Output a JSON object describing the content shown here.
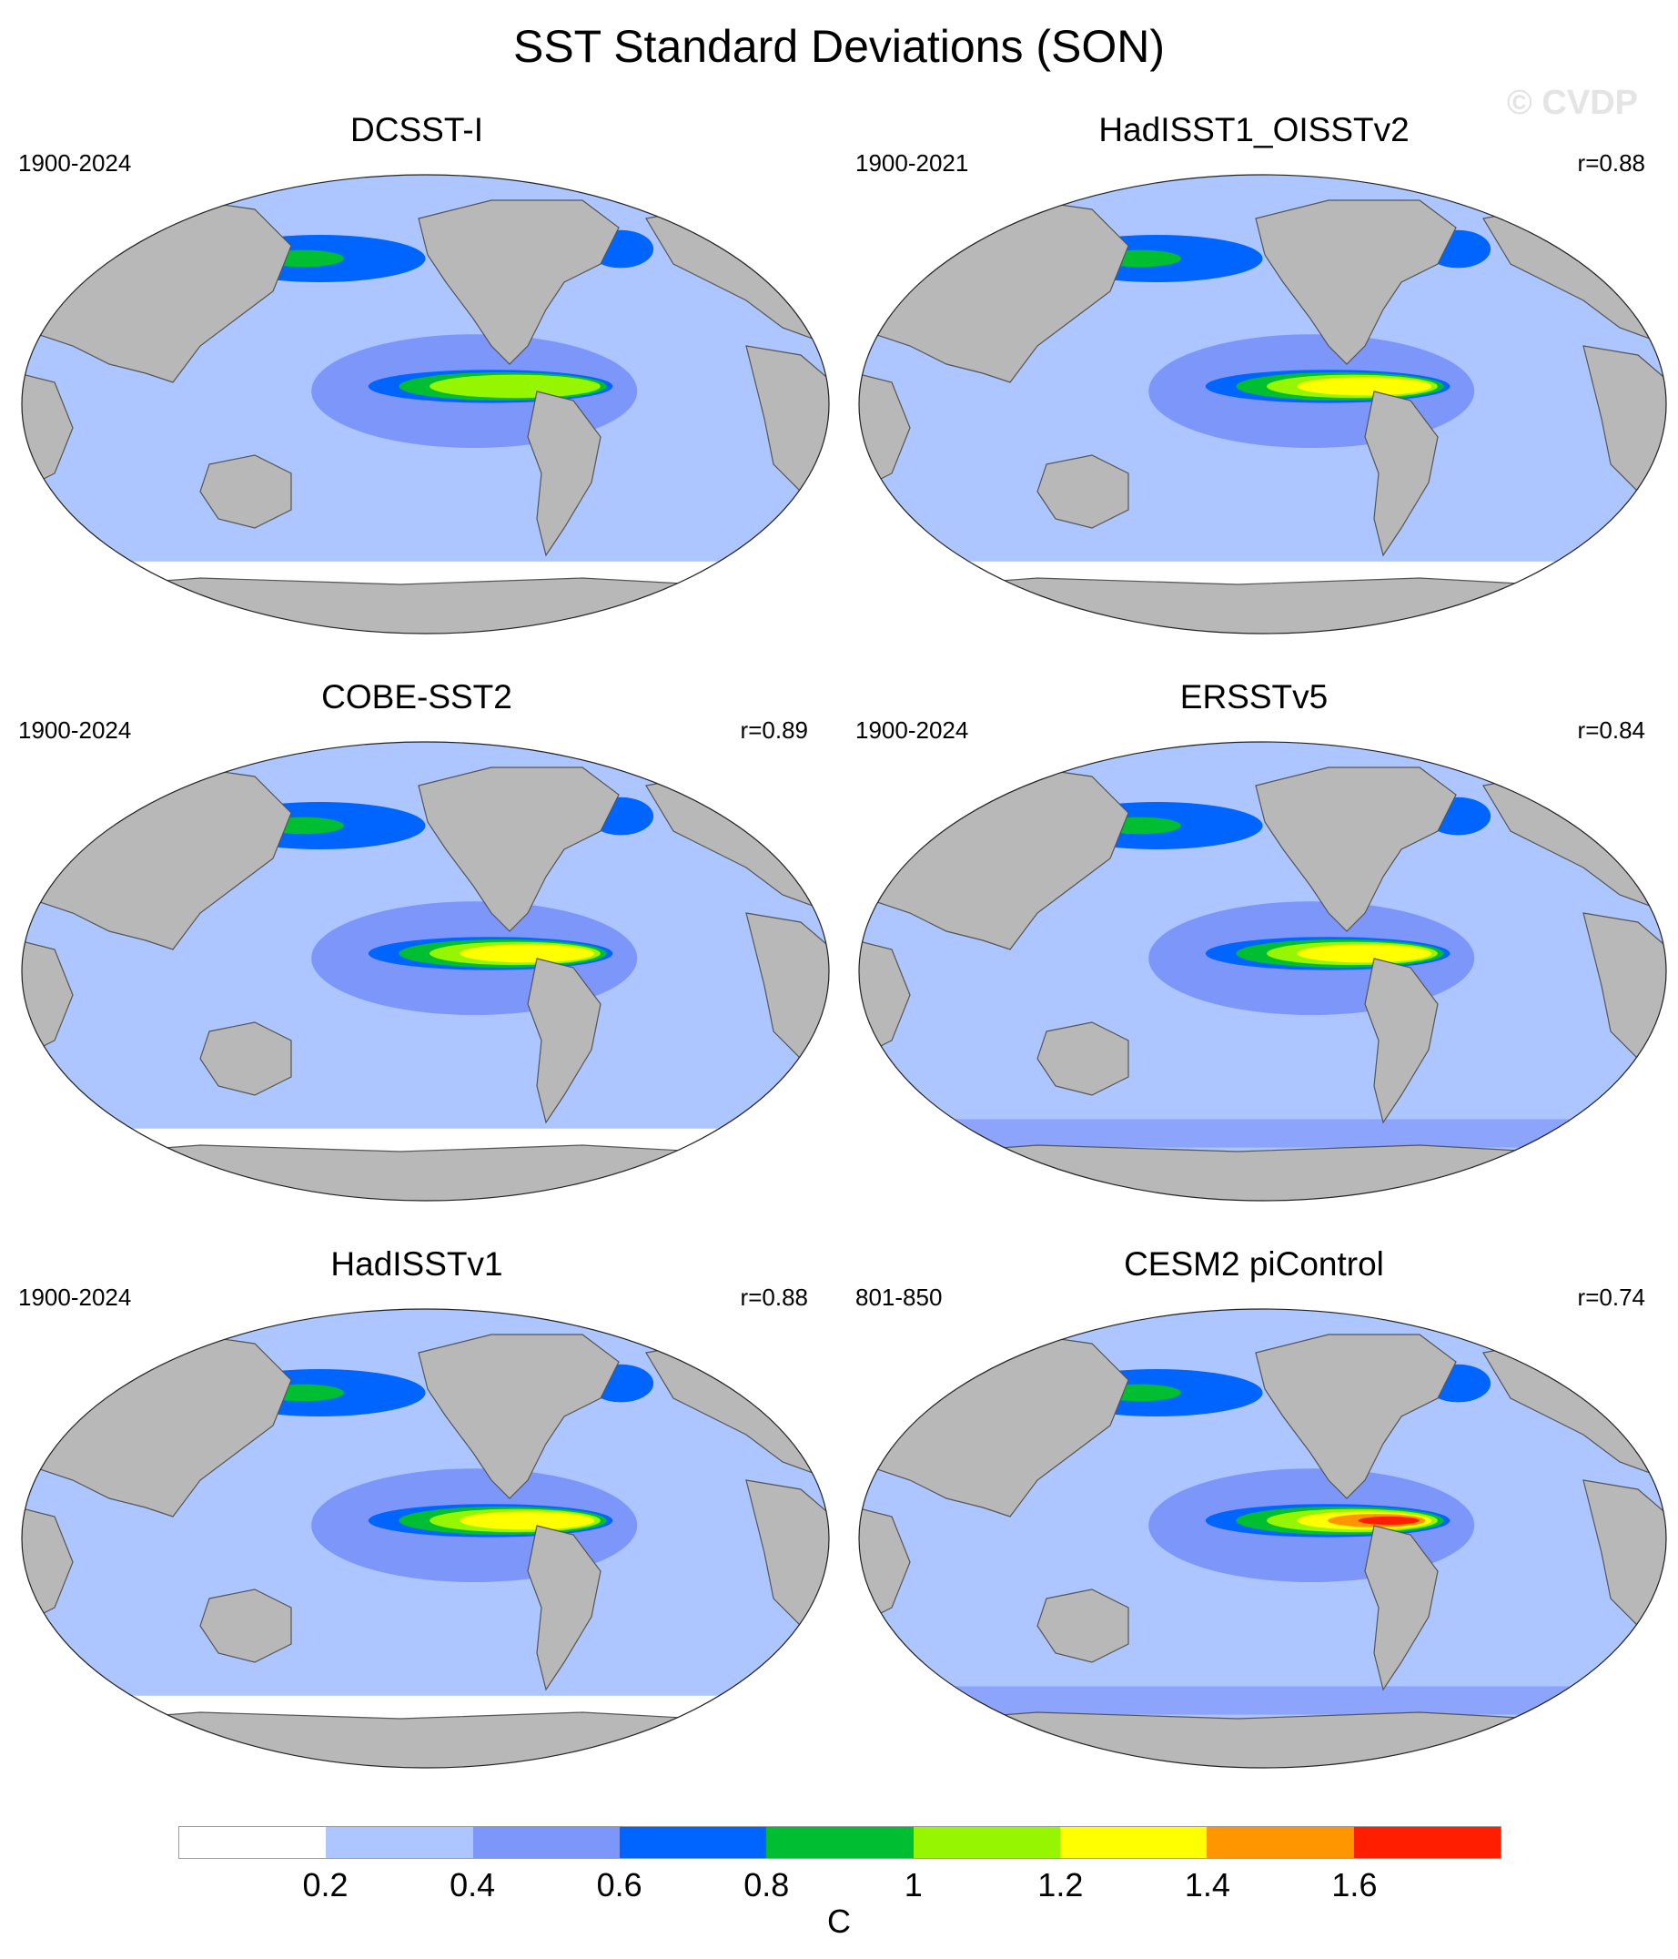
{
  "figure": {
    "title": "SST Standard Deviations (SON)",
    "watermark": "© CVDP"
  },
  "panels": [
    {
      "title": "DCSST-I",
      "period": "1900-2024",
      "r": "",
      "nino_peak": 1.0,
      "whitish_south": true
    },
    {
      "title": "HadISST1_OISSTv2",
      "period": "1900-2021",
      "r": "r=0.88",
      "nino_peak": 1.2,
      "whitish_south": true
    },
    {
      "title": "COBE-SST2",
      "period": "1900-2024",
      "r": "r=0.89",
      "nino_peak": 1.2,
      "whitish_south": true
    },
    {
      "title": "ERSSTv5",
      "period": "1900-2024",
      "r": "r=0.84",
      "nino_peak": 1.2,
      "whitish_south": false
    },
    {
      "title": "HadISSTv1",
      "period": "1900-2024",
      "r": "r=0.88",
      "nino_peak": 1.2,
      "whitish_south": true
    },
    {
      "title": "CESM2 piControl",
      "period": "801-850",
      "r": "r=0.74",
      "nino_peak": 1.6,
      "whitish_south": false
    }
  ],
  "colorbar": {
    "colors": [
      "#ffffff",
      "#aec6ff",
      "#7d96fa",
      "#0064ff",
      "#00be32",
      "#96f500",
      "#ffff00",
      "#ff9600",
      "#ff1e00"
    ],
    "tick_labels": [
      "0.2",
      "0.4",
      "0.6",
      "0.8",
      "1",
      "1.2",
      "1.4",
      "1.6"
    ],
    "unit": "C"
  },
  "colors": {
    "land": "#b8b8b8",
    "ocean_base": "#aec6ff",
    "coast": "#555555"
  }
}
